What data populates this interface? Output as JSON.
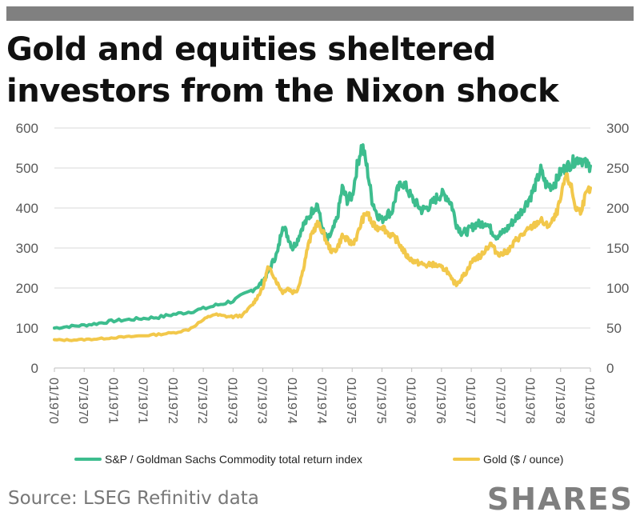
{
  "header": {
    "title_line1": "Gold and equities sheltered",
    "title_line2": "investors from the Nixon shock"
  },
  "footer": {
    "source": "Source: LSEG Refinitiv data",
    "brand": "SHARES"
  },
  "colors": {
    "commodity": "#3dbd8e",
    "gold": "#f2c84b",
    "grid": "#d9d9d9",
    "axis_text": "#595959",
    "brand": "#7f7f7f"
  },
  "chart_data": {
    "type": "line",
    "title": "Gold and equities sheltered investors from the Nixon shock",
    "x_tick_labels": [
      "01/1970",
      "07/1970",
      "01/1971",
      "07/1971",
      "01/1972",
      "07/1972",
      "01/1973",
      "07/1973",
      "01/1974",
      "07/1974",
      "01/1975",
      "07/1975",
      "01/1976",
      "07/1976",
      "01/1977",
      "07/1977",
      "01/1978",
      "07/1978",
      "01/1979"
    ],
    "x_range_months": [
      0,
      108
    ],
    "y_left": {
      "range": [
        0,
        600
      ],
      "ticks": [
        0,
        100,
        200,
        300,
        400,
        500,
        600
      ],
      "tick_labels": [
        "0",
        "100",
        "200",
        "300",
        "400",
        "500",
        "600"
      ]
    },
    "y_right": {
      "range": [
        0,
        300
      ],
      "ticks": [
        0,
        50,
        100,
        150,
        200,
        250,
        300
      ],
      "tick_labels": [
        "0",
        "50",
        "100",
        "150",
        "200",
        "250",
        "300"
      ]
    },
    "grid": true,
    "legend_position": "bottom",
    "series": [
      {
        "name": "S&P / Goldman Sachs Commodity total return index",
        "axis": "left",
        "points": [
          [
            0,
            100
          ],
          [
            3,
            104
          ],
          [
            6,
            107
          ],
          [
            9,
            112
          ],
          [
            12,
            118
          ],
          [
            15,
            121
          ],
          [
            18,
            124
          ],
          [
            21,
            127
          ],
          [
            24,
            134
          ],
          [
            27,
            140
          ],
          [
            30,
            148
          ],
          [
            33,
            158
          ],
          [
            36,
            168
          ],
          [
            39,
            188
          ],
          [
            41,
            205
          ],
          [
            42,
            215
          ],
          [
            43,
            240
          ],
          [
            44,
            265
          ],
          [
            45,
            290
          ],
          [
            46,
            360
          ],
          [
            47,
            330
          ],
          [
            48,
            300
          ],
          [
            49,
            320
          ],
          [
            50,
            355
          ],
          [
            51,
            370
          ],
          [
            52,
            395
          ],
          [
            53,
            410
          ],
          [
            54,
            345
          ],
          [
            55,
            320
          ],
          [
            56,
            340
          ],
          [
            57,
            375
          ],
          [
            58,
            450
          ],
          [
            59,
            420
          ],
          [
            60,
            430
          ],
          [
            61,
            505
          ],
          [
            62,
            560
          ],
          [
            63,
            500
          ],
          [
            64,
            420
          ],
          [
            65,
            385
          ],
          [
            66,
            370
          ],
          [
            67,
            385
          ],
          [
            68,
            390
          ],
          [
            69,
            440
          ],
          [
            70,
            465
          ],
          [
            71,
            450
          ],
          [
            72,
            425
          ],
          [
            73,
            410
          ],
          [
            74,
            395
          ],
          [
            75,
            400
          ],
          [
            76,
            410
          ],
          [
            77,
            425
          ],
          [
            78,
            435
          ],
          [
            79,
            430
          ],
          [
            80,
            410
          ],
          [
            81,
            360
          ],
          [
            82,
            340
          ],
          [
            83,
            340
          ],
          [
            84,
            350
          ],
          [
            85,
            360
          ],
          [
            86,
            360
          ],
          [
            87,
            365
          ],
          [
            88,
            345
          ],
          [
            89,
            330
          ],
          [
            90,
            335
          ],
          [
            91,
            345
          ],
          [
            92,
            360
          ],
          [
            93,
            375
          ],
          [
            94,
            390
          ],
          [
            95,
            410
          ],
          [
            96,
            430
          ],
          [
            97,
            460
          ],
          [
            98,
            495
          ],
          [
            99,
            460
          ],
          [
            100,
            455
          ],
          [
            101,
            465
          ],
          [
            102,
            490
          ],
          [
            103,
            500
          ],
          [
            104,
            510
          ],
          [
            105,
            520
          ],
          [
            106,
            525
          ],
          [
            107,
            510
          ],
          [
            108,
            505
          ]
        ]
      },
      {
        "name": "Gold ($ / ounce)",
        "axis": "right",
        "points": [
          [
            0,
            35
          ],
          [
            3,
            35
          ],
          [
            6,
            35.5
          ],
          [
            9,
            36.5
          ],
          [
            12,
            38
          ],
          [
            15,
            39
          ],
          [
            18,
            40.5
          ],
          [
            21,
            42
          ],
          [
            24,
            44
          ],
          [
            27,
            48
          ],
          [
            30,
            60
          ],
          [
            32,
            67
          ],
          [
            34,
            65
          ],
          [
            36,
            64
          ],
          [
            38,
            66
          ],
          [
            40,
            80
          ],
          [
            41,
            90
          ],
          [
            42,
            100
          ],
          [
            43,
            125
          ],
          [
            44,
            118
          ],
          [
            45,
            105
          ],
          [
            46,
            95
          ],
          [
            47,
            100
          ],
          [
            48,
            95
          ],
          [
            49,
            98
          ],
          [
            50,
            120
          ],
          [
            51,
            150
          ],
          [
            52,
            170
          ],
          [
            53,
            180
          ],
          [
            54,
            172
          ],
          [
            55,
            155
          ],
          [
            56,
            145
          ],
          [
            57,
            150
          ],
          [
            58,
            165
          ],
          [
            59,
            160
          ],
          [
            60,
            155
          ],
          [
            61,
            165
          ],
          [
            62,
            185
          ],
          [
            63,
            195
          ],
          [
            64,
            180
          ],
          [
            65,
            175
          ],
          [
            66,
            178
          ],
          [
            67,
            170
          ],
          [
            68,
            165
          ],
          [
            69,
            160
          ],
          [
            70,
            150
          ],
          [
            71,
            140
          ],
          [
            72,
            135
          ],
          [
            73,
            132
          ],
          [
            74,
            130
          ],
          [
            75,
            128
          ],
          [
            76,
            130
          ],
          [
            77,
            128
          ],
          [
            78,
            125
          ],
          [
            79,
            123
          ],
          [
            80,
            110
          ],
          [
            81,
            105
          ],
          [
            82,
            112
          ],
          [
            83,
            120
          ],
          [
            84,
            132
          ],
          [
            85,
            138
          ],
          [
            86,
            140
          ],
          [
            87,
            150
          ],
          [
            88,
            155
          ],
          [
            89,
            145
          ],
          [
            90,
            142
          ],
          [
            91,
            145
          ],
          [
            92,
            150
          ],
          [
            93,
            160
          ],
          [
            94,
            165
          ],
          [
            95,
            170
          ],
          [
            96,
            175
          ],
          [
            97,
            180
          ],
          [
            98,
            185
          ],
          [
            99,
            178
          ],
          [
            100,
            180
          ],
          [
            101,
            190
          ],
          [
            102,
            210
          ],
          [
            103,
            240
          ],
          [
            104,
            230
          ],
          [
            105,
            200
          ],
          [
            106,
            196
          ],
          [
            107,
            215
          ],
          [
            108,
            225
          ]
        ]
      }
    ]
  }
}
